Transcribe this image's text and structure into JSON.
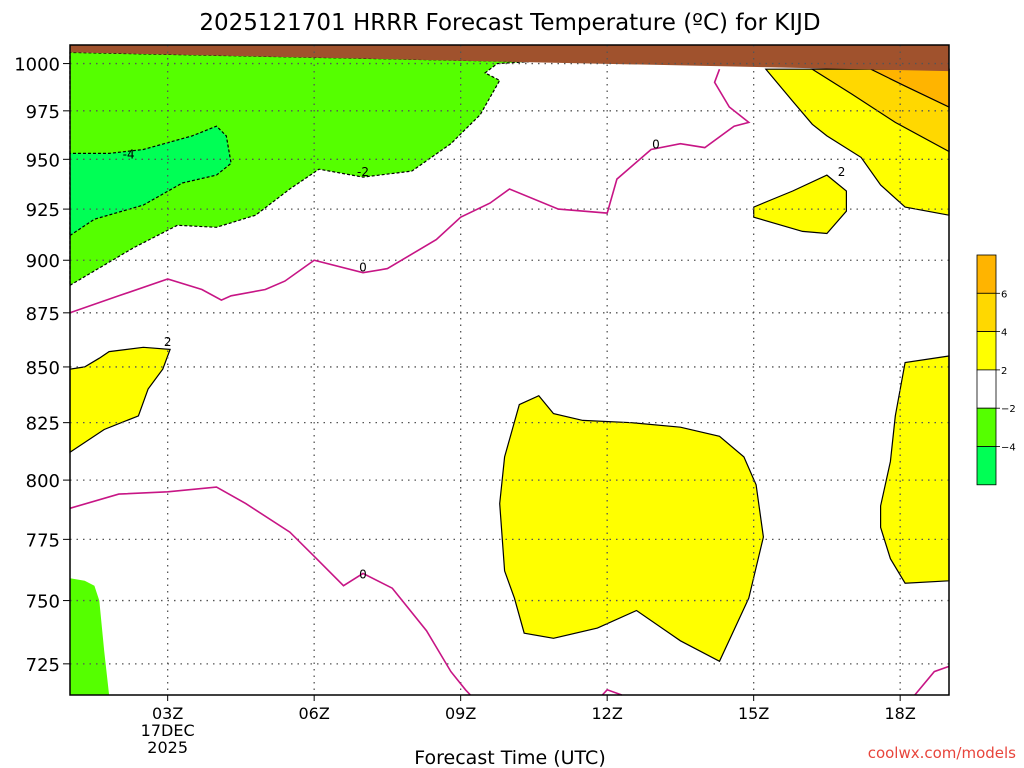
{
  "chart_data": {
    "type": "heatmap",
    "title": "2025121701 HRRR Forecast Temperature (ºC) for KIJD",
    "xlabel": "Forecast Time (UTC)",
    "ylabel": "",
    "credit": "coolwx.com/models",
    "x_range_hours": [
      1,
      19
    ],
    "y_range_hPa": [
      1010,
      713
    ],
    "y_ticks": [
      725,
      750,
      775,
      800,
      825,
      850,
      875,
      900,
      925,
      950,
      975,
      1000
    ],
    "x_ticks": [
      {
        "hour": 3,
        "lines": [
          "03Z",
          "17DEC",
          "2025"
        ]
      },
      {
        "hour": 6,
        "lines": [
          "06Z"
        ]
      },
      {
        "hour": 9,
        "lines": [
          "09Z"
        ]
      },
      {
        "hour": 12,
        "lines": [
          "12Z"
        ]
      },
      {
        "hour": 15,
        "lines": [
          "15Z"
        ]
      },
      {
        "hour": 18,
        "lines": [
          "18Z"
        ]
      }
    ],
    "grid": true,
    "colorbar": {
      "bins": [
        {
          "lo": 6,
          "hi": 8,
          "color": "#ffb400"
        },
        {
          "lo": 4,
          "hi": 6,
          "color": "#ffd800"
        },
        {
          "lo": 2,
          "hi": 4,
          "color": "#ffff00"
        },
        {
          "lo": -2,
          "hi": 2,
          "color": "#ffffff"
        },
        {
          "lo": -4,
          "hi": -2,
          "color": "#55ff00"
        },
        {
          "lo": -6,
          "hi": -4,
          "color": "#00ff55"
        }
      ],
      "labels": [
        6,
        4,
        2,
        -2,
        -4
      ]
    },
    "regions": [
      {
        "color": "#55ff00",
        "stroke": "none",
        "points": [
          [
            1,
            713
          ],
          [
            1.8,
            713
          ],
          [
            1.7,
            730
          ],
          [
            1.6,
            750
          ],
          [
            1.5,
            756
          ],
          [
            1.3,
            758
          ],
          [
            1,
            759
          ]
        ]
      },
      {
        "color": "#ffff00",
        "stroke": "#000",
        "points": [
          [
            1,
            812
          ],
          [
            1.7,
            822
          ],
          [
            2.4,
            828
          ],
          [
            2.6,
            840
          ],
          [
            2.9,
            849
          ],
          [
            3.05,
            858
          ],
          [
            2.5,
            859
          ],
          [
            1.8,
            857
          ],
          [
            1.6,
            854
          ],
          [
            1.3,
            850
          ],
          [
            1,
            849
          ]
        ]
      },
      {
        "color": "#55ff00",
        "stroke": "#000",
        "dash": "3,2",
        "points": [
          [
            1,
            888
          ],
          [
            2.3,
            906
          ],
          [
            3.2,
            917
          ],
          [
            4,
            916
          ],
          [
            4.8,
            922
          ],
          [
            5.5,
            935
          ],
          [
            6.1,
            945
          ],
          [
            7,
            941
          ],
          [
            8,
            944
          ],
          [
            8.8,
            958
          ],
          [
            9.4,
            973
          ],
          [
            9.8,
            991
          ],
          [
            9.5,
            995
          ],
          [
            9.75,
            1000
          ],
          [
            10.4,
            1001
          ],
          [
            1,
            1006
          ]
        ]
      },
      {
        "color": "#00ff55",
        "stroke": "#000",
        "dash": "3,2",
        "points": [
          [
            1,
            912
          ],
          [
            1.5,
            920
          ],
          [
            2.5,
            927
          ],
          [
            3.3,
            938
          ],
          [
            4,
            942
          ],
          [
            4.3,
            948
          ],
          [
            4.2,
            962
          ],
          [
            4.0,
            967
          ],
          [
            3.5,
            962
          ],
          [
            2.5,
            955
          ],
          [
            1.8,
            953
          ],
          [
            1,
            953
          ]
        ]
      },
      {
        "color": "#ffff00",
        "stroke": "#000",
        "points": [
          [
            10.3,
            737
          ],
          [
            10.9,
            735
          ],
          [
            11.8,
            739
          ],
          [
            12.6,
            746
          ],
          [
            13.5,
            734
          ],
          [
            14.3,
            726
          ],
          [
            14.9,
            751
          ],
          [
            15.2,
            776
          ],
          [
            15.05,
            798
          ],
          [
            14.8,
            810
          ],
          [
            14.3,
            819
          ],
          [
            13.5,
            823
          ],
          [
            12.5,
            825
          ],
          [
            11.5,
            826
          ],
          [
            10.9,
            829
          ],
          [
            10.6,
            837
          ],
          [
            10.2,
            833
          ],
          [
            9.9,
            810
          ],
          [
            9.8,
            790
          ],
          [
            9.9,
            762
          ],
          [
            10.1,
            751
          ]
        ]
      },
      {
        "color": "#ffff00",
        "stroke": "#000",
        "points": [
          [
            19,
            758
          ],
          [
            18.1,
            757
          ],
          [
            17.8,
            767
          ],
          [
            17.6,
            780
          ],
          [
            17.6,
            789
          ],
          [
            17.8,
            808
          ],
          [
            17.9,
            828
          ],
          [
            18.1,
            852
          ],
          [
            19,
            855
          ]
        ]
      },
      {
        "color": "#ffff00",
        "stroke": "#000",
        "points": [
          [
            15,
            921
          ],
          [
            16.0,
            914
          ],
          [
            16.5,
            913
          ],
          [
            16.9,
            924
          ],
          [
            16.9,
            934
          ],
          [
            16.5,
            942
          ],
          [
            15.8,
            934
          ],
          [
            15.4,
            930
          ],
          [
            15,
            926
          ]
        ]
      },
      {
        "color": "#ffff00",
        "stroke": "#000",
        "points": [
          [
            15.25,
            997
          ],
          [
            15.8,
            980
          ],
          [
            16.2,
            968
          ],
          [
            16.5,
            962
          ],
          [
            17.2,
            951
          ],
          [
            17.6,
            937
          ],
          [
            18.1,
            926
          ],
          [
            19,
            922
          ],
          [
            19,
            997
          ]
        ]
      },
      {
        "color": "#ffd800",
        "stroke": "#000",
        "points": [
          [
            16.2,
            997
          ],
          [
            17,
            984
          ],
          [
            17.9,
            969
          ],
          [
            19,
            954
          ],
          [
            19,
            997
          ]
        ]
      },
      {
        "color": "#ffb400",
        "stroke": "#000",
        "points": [
          [
            17.4,
            997
          ],
          [
            18.1,
            988
          ],
          [
            19,
            977
          ],
          [
            19,
            997
          ]
        ]
      },
      {
        "color": "#a0522d",
        "stroke": "none",
        "points": [
          [
            1,
            1006
          ],
          [
            19,
            996
          ],
          [
            19,
            1010
          ],
          [
            1,
            1010
          ]
        ]
      }
    ],
    "contours": [
      {
        "color": "#c71585",
        "points": [
          [
            1,
            788
          ],
          [
            2,
            794
          ],
          [
            3,
            795
          ],
          [
            4.0,
            797
          ],
          [
            4.6,
            790
          ],
          [
            5.5,
            778
          ],
          [
            6,
            768
          ],
          [
            6.6,
            756
          ],
          [
            7,
            761
          ],
          [
            7.6,
            755
          ],
          [
            8.3,
            738
          ],
          [
            8.8,
            722
          ],
          [
            9.1,
            715
          ],
          [
            9.2,
            713
          ]
        ]
      },
      {
        "color": "#c71585",
        "points": [
          [
            11.9,
            713
          ],
          [
            12.0,
            715
          ],
          [
            12.3,
            713
          ]
        ]
      },
      {
        "color": "#c71585",
        "points": [
          [
            18.3,
            713
          ],
          [
            18.7,
            722
          ],
          [
            19,
            724
          ]
        ]
      },
      {
        "color": "#c71585",
        "points": [
          [
            1,
            875
          ],
          [
            2.0,
            883
          ],
          [
            3,
            891
          ],
          [
            3.7,
            886
          ],
          [
            4.1,
            881
          ],
          [
            4.3,
            883
          ],
          [
            5,
            886
          ],
          [
            5.4,
            890
          ],
          [
            6,
            900
          ],
          [
            7,
            894
          ],
          [
            7.5,
            896
          ],
          [
            8.5,
            910
          ],
          [
            9,
            921
          ],
          [
            9.6,
            928
          ],
          [
            10,
            935
          ],
          [
            11,
            925
          ],
          [
            12,
            923
          ],
          [
            12.2,
            940
          ],
          [
            12.9,
            955
          ],
          [
            13.5,
            958
          ],
          [
            14,
            956
          ],
          [
            14.6,
            967
          ],
          [
            14.9,
            969
          ],
          [
            14.5,
            977
          ],
          [
            14.2,
            990
          ],
          [
            14.3,
            997
          ]
        ]
      }
    ],
    "contour_labels": [
      {
        "text": "0",
        "x": 7.0,
        "y": 761
      },
      {
        "text": "0",
        "x": 7.0,
        "y": 897
      },
      {
        "text": "0",
        "x": 13.0,
        "y": 958
      },
      {
        "text": "2",
        "x": 3.0,
        "y": 862
      },
      {
        "text": "2",
        "x": 16.8,
        "y": 944
      },
      {
        "text": "-2",
        "x": 7.0,
        "y": 944
      },
      {
        "text": "-4",
        "x": 2.2,
        "y": 953
      }
    ]
  }
}
